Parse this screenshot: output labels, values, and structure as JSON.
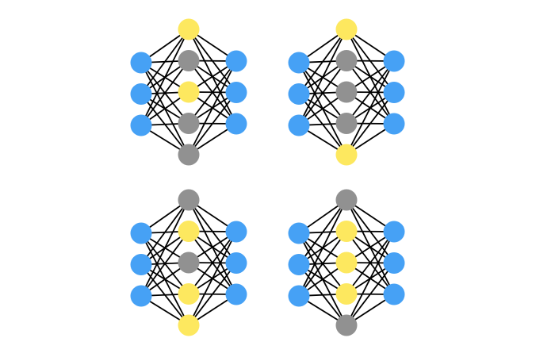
{
  "colors": {
    "input": "#46a1f5",
    "hidden_off": "#919191",
    "hidden_on": "#fde85f",
    "output": "#46a1f5",
    "edge": "#000000",
    "background": "#ffffff"
  },
  "networks": [
    {
      "name": "network-top-left",
      "input_count": 3,
      "output_count": 3,
      "hidden": [
        "on",
        "off",
        "on",
        "off",
        "off"
      ]
    },
    {
      "name": "network-top-right",
      "input_count": 3,
      "output_count": 3,
      "hidden": [
        "on",
        "off",
        "off",
        "off",
        "on"
      ]
    },
    {
      "name": "network-bottom-left",
      "input_count": 3,
      "output_count": 3,
      "hidden": [
        "off",
        "on",
        "off",
        "on",
        "on"
      ]
    },
    {
      "name": "network-bottom-right",
      "input_count": 3,
      "output_count": 3,
      "hidden": [
        "off",
        "on",
        "on",
        "on",
        "off"
      ]
    }
  ]
}
